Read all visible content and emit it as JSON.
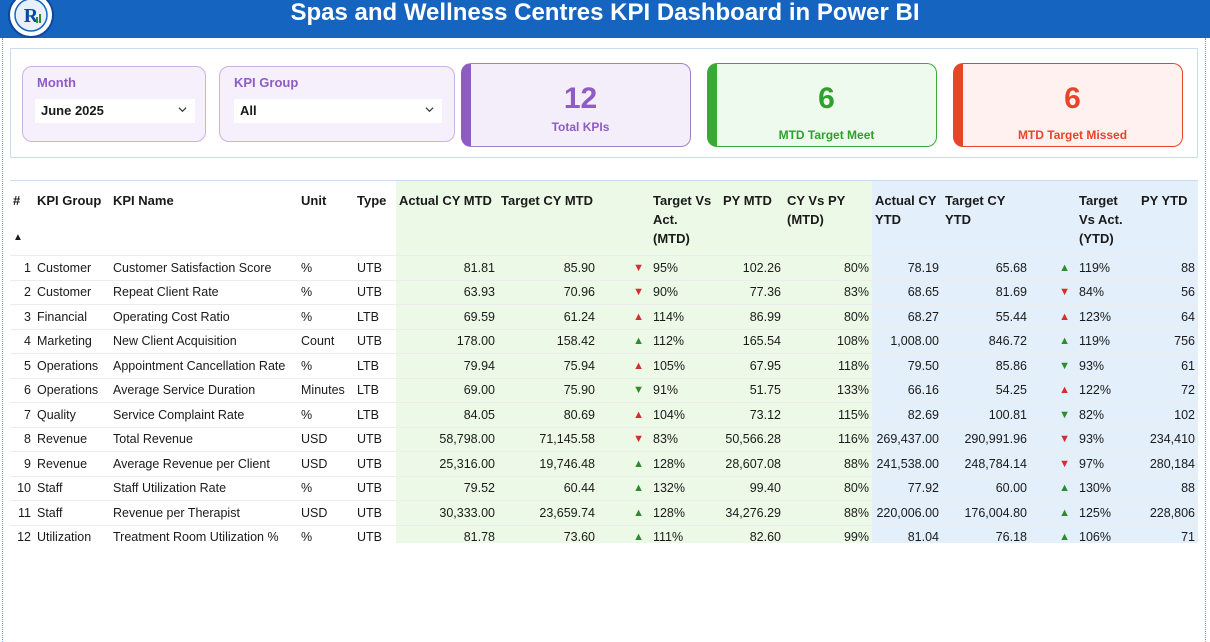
{
  "header": {
    "title": "Spas and Wellness Centres KPI Dashboard in Power BI",
    "logo_letter": "R"
  },
  "filters": {
    "month": {
      "label": "Month",
      "value": "June 2025"
    },
    "kpi_group": {
      "label": "KPI Group",
      "value": "All"
    }
  },
  "cards": {
    "total": {
      "value": "12",
      "label": "Total KPIs",
      "color": "#8e5cc4"
    },
    "meet": {
      "value": "6",
      "label": "MTD Target Meet",
      "color": "#2ea12a"
    },
    "missed": {
      "value": "6",
      "label": "MTD Target Missed",
      "color": "#e8442a"
    }
  },
  "table": {
    "headers": {
      "num": "#",
      "group": "KPI Group",
      "name": "KPI Name",
      "unit": "Unit",
      "type": "Type",
      "actual_mtd": "Actual CY MTD",
      "target_mtd": "Target CY MTD",
      "tva_mtd": "Target Vs Act. (MTD)",
      "py_mtd": "PY MTD",
      "cy_py_mtd": "CY Vs PY (MTD)",
      "actual_ytd": "Actual CY YTD",
      "target_ytd": "Target CY YTD",
      "tva_ytd": "Target Vs Act. (YTD)",
      "py_ytd": "PY YTD"
    },
    "rows": [
      {
        "num": "1",
        "group": "Customer",
        "name": "Customer Satisfaction Score",
        "unit": "%",
        "type": "UTB",
        "actual_mtd": "81.81",
        "target_mtd": "85.90",
        "mtd_dir": "down",
        "tva_mtd": "95%",
        "py_mtd": "102.26",
        "cy_py_mtd": "80%",
        "actual_ytd": "78.19",
        "target_ytd": "65.68",
        "ytd_dir": "up",
        "tva_ytd": "119%",
        "py_ytd": "88"
      },
      {
        "num": "2",
        "group": "Customer",
        "name": "Repeat Client Rate",
        "unit": "%",
        "type": "UTB",
        "actual_mtd": "63.93",
        "target_mtd": "70.96",
        "mtd_dir": "down",
        "tva_mtd": "90%",
        "py_mtd": "77.36",
        "cy_py_mtd": "83%",
        "actual_ytd": "68.65",
        "target_ytd": "81.69",
        "ytd_dir": "down",
        "tva_ytd": "84%",
        "py_ytd": "56"
      },
      {
        "num": "3",
        "group": "Financial",
        "name": "Operating Cost Ratio",
        "unit": "%",
        "type": "LTB",
        "actual_mtd": "69.59",
        "target_mtd": "61.24",
        "mtd_dir": "up-red",
        "tva_mtd": "114%",
        "py_mtd": "86.99",
        "cy_py_mtd": "80%",
        "actual_ytd": "68.27",
        "target_ytd": "55.44",
        "ytd_dir": "up-red",
        "tva_ytd": "123%",
        "py_ytd": "64"
      },
      {
        "num": "4",
        "group": "Marketing",
        "name": "New Client Acquisition",
        "unit": "Count",
        "type": "UTB",
        "actual_mtd": "178.00",
        "target_mtd": "158.42",
        "mtd_dir": "up",
        "tva_mtd": "112%",
        "py_mtd": "165.54",
        "cy_py_mtd": "108%",
        "actual_ytd": "1,008.00",
        "target_ytd": "846.72",
        "ytd_dir": "up",
        "tva_ytd": "119%",
        "py_ytd": "756"
      },
      {
        "num": "5",
        "group": "Operations",
        "name": "Appointment Cancellation Rate",
        "unit": "%",
        "type": "LTB",
        "actual_mtd": "79.94",
        "target_mtd": "75.94",
        "mtd_dir": "up-red",
        "tva_mtd": "105%",
        "py_mtd": "67.95",
        "cy_py_mtd": "118%",
        "actual_ytd": "79.50",
        "target_ytd": "85.86",
        "ytd_dir": "down-green",
        "tva_ytd": "93%",
        "py_ytd": "61"
      },
      {
        "num": "6",
        "group": "Operations",
        "name": "Average Service Duration",
        "unit": "Minutes",
        "type": "LTB",
        "actual_mtd": "69.00",
        "target_mtd": "75.90",
        "mtd_dir": "down-green",
        "tva_mtd": "91%",
        "py_mtd": "51.75",
        "cy_py_mtd": "133%",
        "actual_ytd": "66.16",
        "target_ytd": "54.25",
        "ytd_dir": "up-red",
        "tva_ytd": "122%",
        "py_ytd": "72"
      },
      {
        "num": "7",
        "group": "Quality",
        "name": "Service Complaint Rate",
        "unit": "%",
        "type": "LTB",
        "actual_mtd": "84.05",
        "target_mtd": "80.69",
        "mtd_dir": "up-red",
        "tva_mtd": "104%",
        "py_mtd": "73.12",
        "cy_py_mtd": "115%",
        "actual_ytd": "82.69",
        "target_ytd": "100.81",
        "ytd_dir": "down-green",
        "tva_ytd": "82%",
        "py_ytd": "102"
      },
      {
        "num": "8",
        "group": "Revenue",
        "name": "Total Revenue",
        "unit": "USD",
        "type": "UTB",
        "actual_mtd": "58,798.00",
        "target_mtd": "71,145.58",
        "mtd_dir": "down",
        "tva_mtd": "83%",
        "py_mtd": "50,566.28",
        "cy_py_mtd": "116%",
        "actual_ytd": "269,437.00",
        "target_ytd": "290,991.96",
        "ytd_dir": "down",
        "tva_ytd": "93%",
        "py_ytd": "234,410"
      },
      {
        "num": "9",
        "group": "Revenue",
        "name": "Average Revenue per Client",
        "unit": "USD",
        "type": "UTB",
        "actual_mtd": "25,316.00",
        "target_mtd": "19,746.48",
        "mtd_dir": "up",
        "tva_mtd": "128%",
        "py_mtd": "28,607.08",
        "cy_py_mtd": "88%",
        "actual_ytd": "241,538.00",
        "target_ytd": "248,784.14",
        "ytd_dir": "down",
        "tva_ytd": "97%",
        "py_ytd": "280,184"
      },
      {
        "num": "10",
        "group": "Staff",
        "name": "Staff Utilization Rate",
        "unit": "%",
        "type": "UTB",
        "actual_mtd": "79.52",
        "target_mtd": "60.44",
        "mtd_dir": "up",
        "tva_mtd": "132%",
        "py_mtd": "99.40",
        "cy_py_mtd": "80%",
        "actual_ytd": "77.92",
        "target_ytd": "60.00",
        "ytd_dir": "up",
        "tva_ytd": "130%",
        "py_ytd": "88"
      },
      {
        "num": "11",
        "group": "Staff",
        "name": "Revenue per Therapist",
        "unit": "USD",
        "type": "UTB",
        "actual_mtd": "30,333.00",
        "target_mtd": "23,659.74",
        "mtd_dir": "up",
        "tva_mtd": "128%",
        "py_mtd": "34,276.29",
        "cy_py_mtd": "88%",
        "actual_ytd": "220,006.00",
        "target_ytd": "176,004.80",
        "ytd_dir": "up",
        "tva_ytd": "125%",
        "py_ytd": "228,806"
      },
      {
        "num": "12",
        "group": "Utilization",
        "name": "Treatment Room Utilization %",
        "unit": "%",
        "type": "UTB",
        "actual_mtd": "81.78",
        "target_mtd": "73.60",
        "mtd_dir": "up",
        "tva_mtd": "111%",
        "py_mtd": "82.60",
        "cy_py_mtd": "99%",
        "actual_ytd": "81.04",
        "target_ytd": "76.18",
        "ytd_dir": "up",
        "tva_ytd": "106%",
        "py_ytd": "71"
      }
    ]
  },
  "colors": {
    "header_bar": "#1565c0",
    "mtd_column_bg": "#ecf9e6",
    "ytd_column_bg": "#e3effb",
    "arrow_green": "#2e8b2e",
    "arrow_red": "#d32f2f"
  }
}
